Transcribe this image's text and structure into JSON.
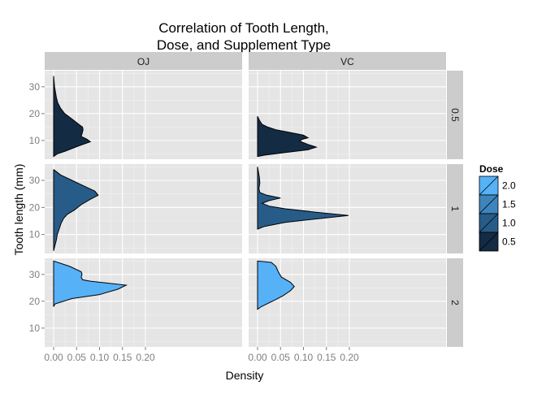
{
  "chart_data": {
    "type": "area",
    "orientation": "horizontal-density",
    "title": "Correlation of Tooth Length,\nDose, and Supplement Type",
    "title_lines": [
      "Correlation of Tooth Length,",
      "Dose, and Supplement Type"
    ],
    "xlabel": "Density",
    "ylabel": "Tooth length (mm)",
    "xlim": [
      0,
      0.2
    ],
    "ylim": [
      3,
      36
    ],
    "xticks": [
      0,
      0.05,
      0.1,
      0.15,
      0.2
    ],
    "xtick_labels": [
      "0.00",
      "0.05",
      "0.10",
      "0.15",
      "0.20"
    ],
    "yticks": [
      10,
      20,
      30
    ],
    "ytick_labels": [
      "10",
      "20",
      "30"
    ],
    "grid": true,
    "column_strips": [
      "OJ",
      "VC"
    ],
    "row_strips": [
      "0.5",
      "1",
      "2"
    ],
    "legend": {
      "title": "Dose",
      "position": "right",
      "entries": [
        {
          "label": "2.0",
          "color": "#56B1F7"
        },
        {
          "label": "1.5",
          "color": "#3E85BE"
        },
        {
          "label": "1.0",
          "color": "#275C89"
        },
        {
          "label": "0.5",
          "color": "#132B43"
        }
      ]
    },
    "panels": [
      {
        "supp": "OJ",
        "dose": "0.5",
        "color": "#132B43",
        "points": [
          [
            4,
            0
          ],
          [
            5,
            0.008
          ],
          [
            6,
            0.025
          ],
          [
            8,
            0.055
          ],
          [
            9.5,
            0.08
          ],
          [
            10.5,
            0.072
          ],
          [
            11.5,
            0.06
          ],
          [
            12.5,
            0.062
          ],
          [
            14,
            0.064
          ],
          [
            15,
            0.063
          ],
          [
            16,
            0.055
          ],
          [
            18,
            0.04
          ],
          [
            20,
            0.024
          ],
          [
            22,
            0.015
          ],
          [
            24,
            0.009
          ],
          [
            26,
            0.006
          ],
          [
            28,
            0.004
          ],
          [
            30,
            0.002
          ],
          [
            32,
            0.001
          ],
          [
            34,
            0
          ]
        ]
      },
      {
        "supp": "VC",
        "dose": "0.5",
        "color": "#132B43",
        "points": [
          [
            4,
            0
          ],
          [
            4.5,
            0.015
          ],
          [
            5.5,
            0.06
          ],
          [
            6.5,
            0.11
          ],
          [
            7.5,
            0.128
          ],
          [
            8.5,
            0.11
          ],
          [
            9.5,
            0.095
          ],
          [
            10,
            0.092
          ],
          [
            10.5,
            0.1
          ],
          [
            11,
            0.11
          ],
          [
            12,
            0.1
          ],
          [
            13,
            0.07
          ],
          [
            14,
            0.04
          ],
          [
            15,
            0.022
          ],
          [
            16,
            0.01
          ],
          [
            17.5,
            0.004
          ],
          [
            19,
            0
          ]
        ]
      },
      {
        "supp": "OJ",
        "dose": "1",
        "color": "#275C89",
        "points": [
          [
            4,
            0
          ],
          [
            6,
            0.003
          ],
          [
            8,
            0.006
          ],
          [
            10,
            0.008
          ],
          [
            12,
            0.012
          ],
          [
            14,
            0.016
          ],
          [
            16,
            0.022
          ],
          [
            17.5,
            0.03
          ],
          [
            19,
            0.045
          ],
          [
            21,
            0.06
          ],
          [
            23,
            0.08
          ],
          [
            24.5,
            0.097
          ],
          [
            26,
            0.09
          ],
          [
            28,
            0.065
          ],
          [
            30,
            0.04
          ],
          [
            32,
            0.015
          ],
          [
            34,
            0
          ]
        ]
      },
      {
        "supp": "VC",
        "dose": "1",
        "color": "#275C89",
        "points": [
          [
            12,
            0
          ],
          [
            13,
            0.015
          ],
          [
            14.5,
            0.06
          ],
          [
            16,
            0.14
          ],
          [
            17,
            0.198
          ],
          [
            18,
            0.14
          ],
          [
            19.5,
            0.06
          ],
          [
            20.5,
            0.025
          ],
          [
            21.5,
            0.01
          ],
          [
            22.5,
            0.025
          ],
          [
            23.5,
            0.05
          ],
          [
            24.5,
            0.02
          ],
          [
            25.5,
            0.005
          ],
          [
            27,
            0.003
          ],
          [
            29,
            0.005
          ],
          [
            31,
            0.004
          ],
          [
            33,
            0.002
          ],
          [
            35,
            0
          ]
        ]
      },
      {
        "supp": "OJ",
        "dose": "2",
        "color": "#56B1F7",
        "points": [
          [
            18,
            0
          ],
          [
            19,
            0.003
          ],
          [
            21,
            0.04
          ],
          [
            22.5,
            0.1
          ],
          [
            24.5,
            0.14
          ],
          [
            26,
            0.158
          ],
          [
            27.5,
            0.08
          ],
          [
            28,
            0.063
          ],
          [
            29,
            0.06
          ],
          [
            30,
            0.062
          ],
          [
            31,
            0.06
          ],
          [
            33,
            0.035
          ],
          [
            35,
            0
          ]
        ]
      },
      {
        "supp": "VC",
        "dose": "2",
        "color": "#56B1F7",
        "points": [
          [
            17,
            0
          ],
          [
            18,
            0.008
          ],
          [
            19,
            0.02
          ],
          [
            20.5,
            0.038
          ],
          [
            22,
            0.055
          ],
          [
            24,
            0.072
          ],
          [
            25.5,
            0.08
          ],
          [
            27,
            0.072
          ],
          [
            29,
            0.052
          ],
          [
            31,
            0.045
          ],
          [
            33,
            0.04
          ],
          [
            34.5,
            0.03
          ],
          [
            35,
            0
          ]
        ]
      }
    ]
  }
}
